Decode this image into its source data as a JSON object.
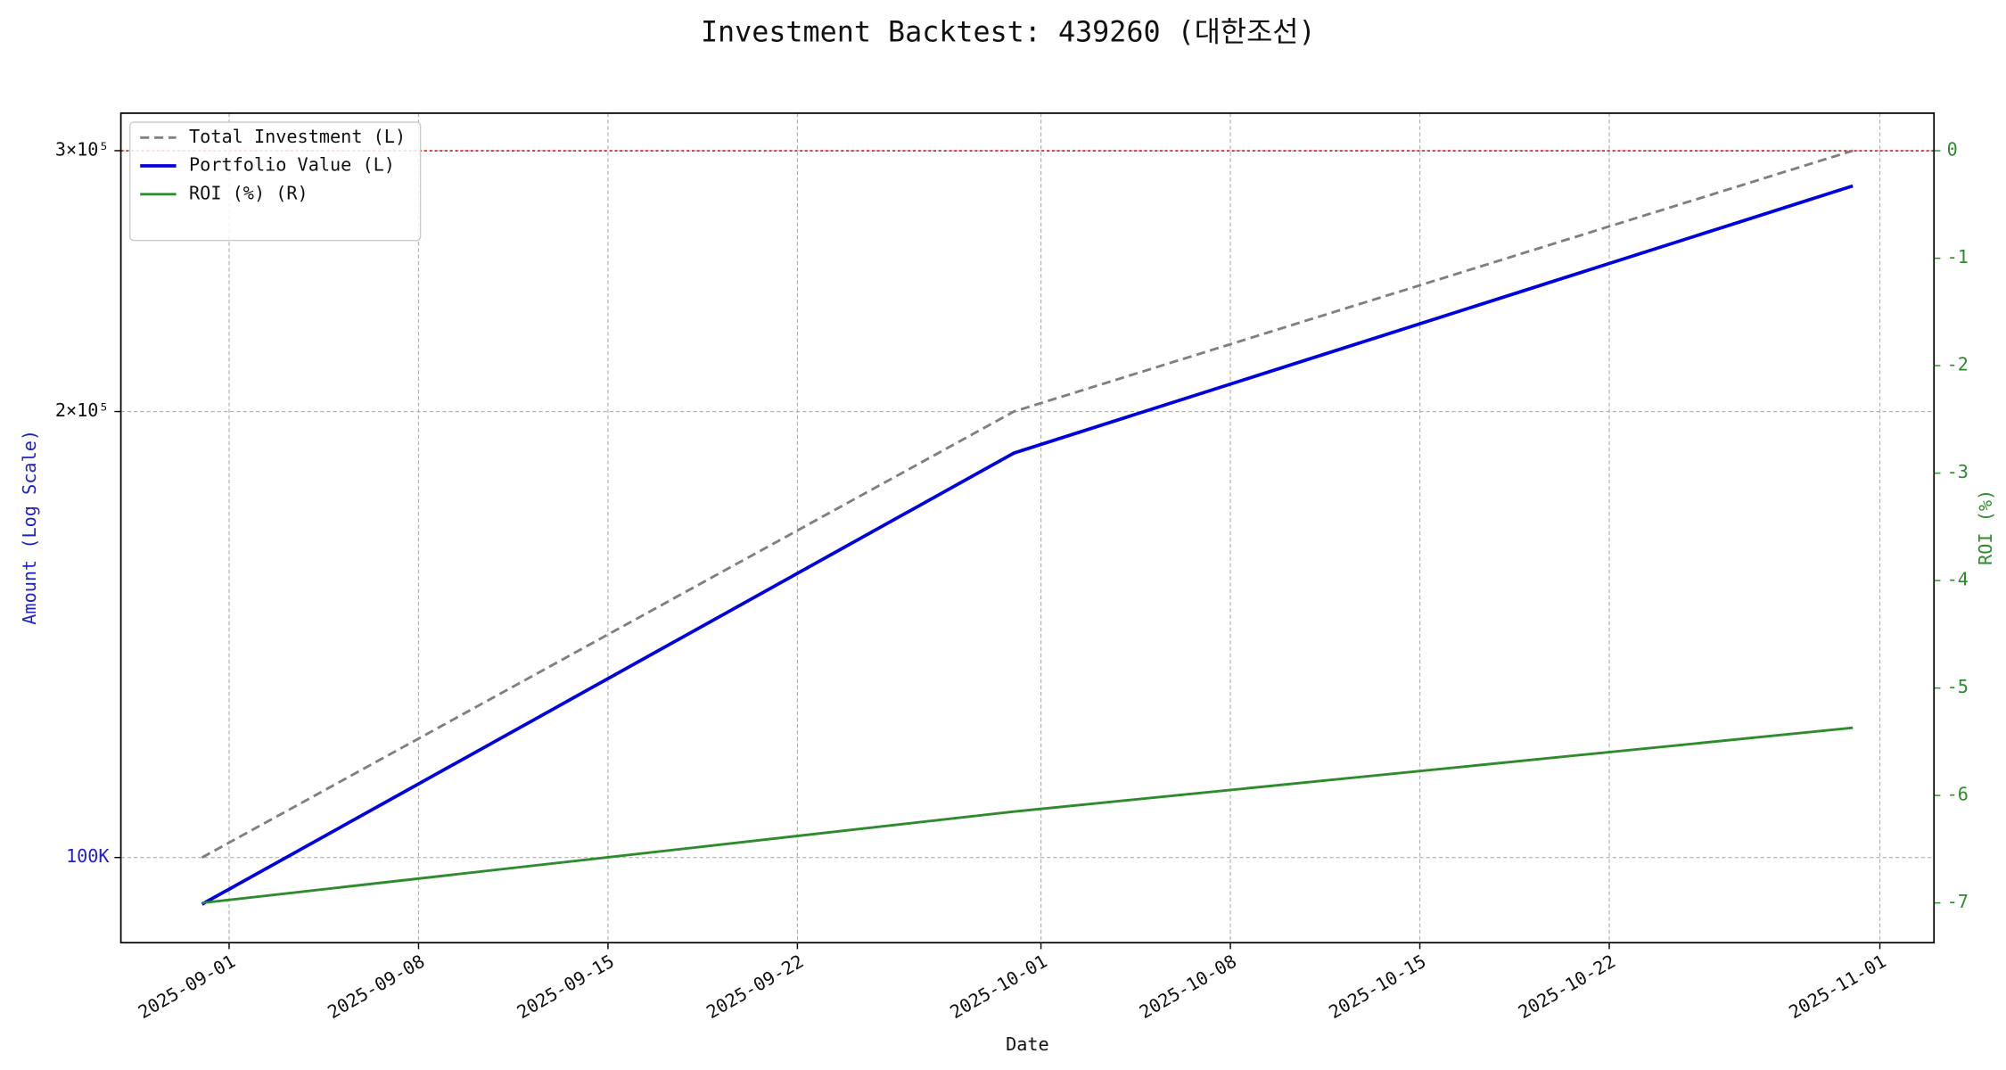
{
  "chart_data": {
    "type": "line",
    "title": "Investment Backtest: 439260 (대한조선)",
    "x_label": "Date",
    "y_label": "Amount (Log Scale)",
    "y_label_color": "#2222cc",
    "y2_label": "ROI (%)",
    "y2_color": "#2e8b2e",
    "x": [
      "2025-08-31",
      "2025-09-30",
      "2025-10-31"
    ],
    "series": [
      {
        "name": "Total Investment (L)",
        "color": "#808080",
        "linestyle": "dashed",
        "linewidth": 2,
        "axis": "y",
        "values": [
          100000,
          200000,
          300000
        ]
      },
      {
        "name": "Portfolio Value (L)",
        "color": "#0000dd",
        "linestyle": "solid",
        "linewidth": 2.6,
        "axis": "y",
        "values": [
          93000,
          187500,
          284000
        ]
      },
      {
        "name": "ROI (%) (R)",
        "color": "#2e8b2e",
        "linestyle": "solid",
        "linewidth": 2,
        "axis": "y2",
        "values": [
          -7.0,
          -6.15,
          -5.37
        ]
      }
    ],
    "xlim": [
      "2025-08-28",
      "2025-11-03"
    ],
    "xticks": [
      "2025-09-01",
      "2025-09-08",
      "2025-09-15",
      "2025-09-22",
      "2025-10-01",
      "2025-10-08",
      "2025-10-15",
      "2025-10-22",
      "2025-11-01"
    ],
    "ylim": [
      87600,
      318000
    ],
    "y_log": true,
    "yticks": [
      {
        "value": 100000,
        "label": "100K",
        "color": "#2222cc"
      },
      {
        "value": 200000,
        "label": "2×10⁵"
      },
      {
        "value": 300000,
        "label": "3×10⁵"
      }
    ],
    "y2lim": [
      -7.37,
      0.35
    ],
    "y2ticks": [
      0,
      -1,
      -2,
      -3,
      -4,
      -5,
      -6,
      -7
    ],
    "reference_line": {
      "axis": "y2",
      "value": 0,
      "color": "#d62728"
    },
    "grid": true,
    "legend": "upper left"
  }
}
